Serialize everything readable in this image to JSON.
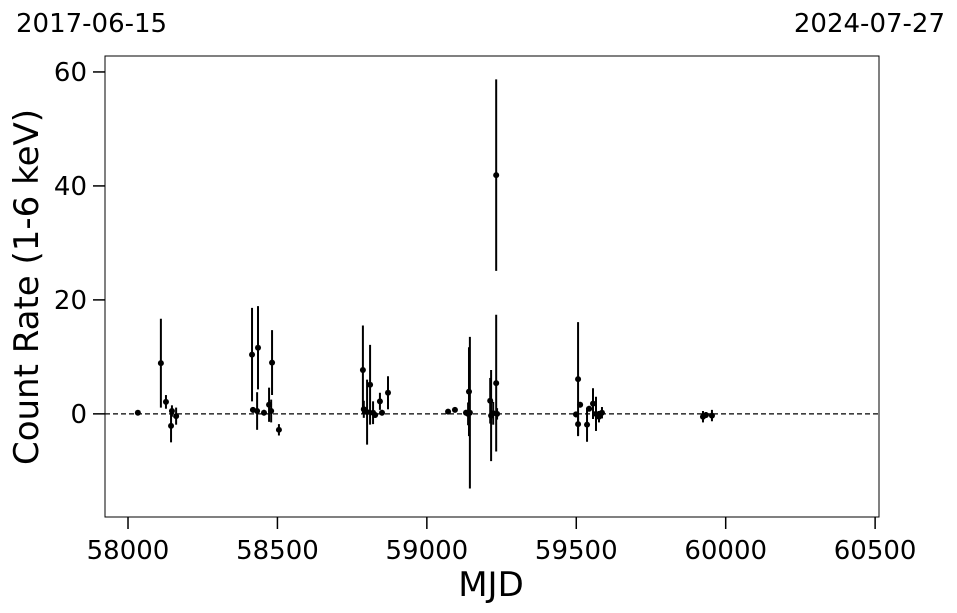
{
  "chart_data": {
    "type": "errorbar-scatter",
    "start_date": "2017-06-15",
    "end_date": "2024-07-27",
    "xlabel": "MJD",
    "ylabel": "Count Rate (1-6 keV)",
    "color": "#000000",
    "xlim": [
      57923,
      60513
    ],
    "ylim": [
      -18.1,
      62.8
    ],
    "xticks": [
      58000,
      58500,
      59000,
      59500,
      60000,
      60500
    ],
    "yticks": [
      0,
      20,
      40,
      60
    ],
    "zero_line": true,
    "x": [
      58033,
      58110,
      58127,
      58144,
      58147,
      58161,
      58415,
      58418,
      58435,
      58432,
      58455,
      58472,
      58479,
      58482,
      58505,
      58786,
      58789,
      58800,
      58810,
      58820,
      58827,
      58843,
      58850,
      58870,
      59071,
      59094,
      59131,
      59141,
      59144,
      59138,
      59212,
      59215,
      59222,
      59232,
      59232,
      59235,
      59506,
      59499,
      59506,
      59513,
      59536,
      59543,
      59556,
      59566,
      59576,
      59586,
      59924,
      59934,
      59954
    ],
    "y": [
      0.2,
      8.9,
      2.1,
      -2.1,
      0.5,
      -0.4,
      10.4,
      0.7,
      11.6,
      0.5,
      0.2,
      1.6,
      0.5,
      9,
      -2.8,
      7.7,
      0.8,
      0.3,
      5.1,
      0.2,
      -0.2,
      2.2,
      0.2,
      3.7,
      0.4,
      0.7,
      0.2,
      3.9,
      0.2,
      0,
      2.3,
      -0.3,
      0.1,
      41.9,
      5.4,
      0,
      6.1,
      -0.1,
      -1.8,
      1.6,
      -1.9,
      0.9,
      1.8,
      0,
      -0.5,
      0.2,
      -0.5,
      -0.2,
      -0.3
    ],
    "err": [
      0.3,
      7.8,
      1.2,
      2.9,
      1,
      1.5,
      8.2,
      0.5,
      7.3,
      3.3,
      0.5,
      3,
      2,
      5.7,
      1,
      7.8,
      1.5,
      5.7,
      7,
      2,
      0.5,
      1.5,
      0.5,
      2.9,
      0.3,
      0.3,
      0.5,
      7.8,
      13.3,
      2,
      4,
      8,
      2,
      16.8,
      12,
      1,
      10,
      0.5,
      2,
      0.5,
      3,
      0.5,
      2.7,
      3,
      1,
      1,
      1,
      0.5,
      1
    ]
  }
}
